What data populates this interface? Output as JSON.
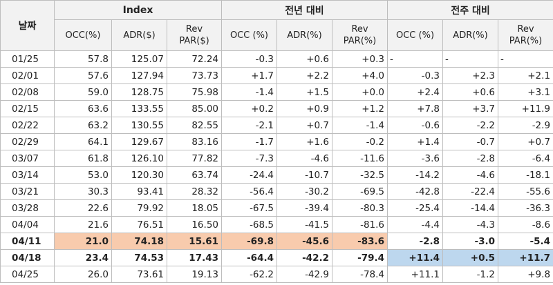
{
  "header": {
    "date_label": "날짜",
    "groups": [
      "Index",
      "전년 대비",
      "전주 대비"
    ],
    "columns": [
      "OCC(%)",
      "ADR($)",
      "Rev PAR($)",
      "OCC (%)",
      "ADR(%)",
      "Rev PAR(%)",
      "OCC (%)",
      "ADR(%)",
      "Rev PAR(%)"
    ]
  },
  "rows": [
    {
      "date": "01/25",
      "values": [
        "57.8",
        "125.07",
        "72.24",
        "-0.3",
        "+0.6",
        "+0.3",
        "-",
        "-",
        "-"
      ]
    },
    {
      "date": "02/01",
      "values": [
        "57.6",
        "127.94",
        "73.73",
        "+1.7",
        "+2.2",
        "+4.0",
        "-0.3",
        "+2.3",
        "+2.1"
      ]
    },
    {
      "date": "02/08",
      "values": [
        "59.0",
        "128.75",
        "75.98",
        "-1.4",
        "+1.5",
        "+0.0",
        "+2.4",
        "+0.6",
        "+3.1"
      ]
    },
    {
      "date": "02/15",
      "values": [
        "63.6",
        "133.55",
        "85.00",
        "+0.2",
        "+0.9",
        "+1.2",
        "+7.8",
        "+3.7",
        "+11.9"
      ]
    },
    {
      "date": "02/22",
      "values": [
        "63.2",
        "130.55",
        "82.55",
        "-2.1",
        "+0.7",
        "-1.4",
        "-0.6",
        "-2.2",
        "-2.9"
      ]
    },
    {
      "date": "02/29",
      "values": [
        "64.1",
        "129.67",
        "83.16",
        "-1.7",
        "+1.6",
        "-0.2",
        "+1.4",
        "-0.7",
        "+0.7"
      ]
    },
    {
      "date": "03/07",
      "values": [
        "61.8",
        "126.10",
        "77.82",
        "-7.3",
        "-4.6",
        "-11.6",
        "-3.6",
        "-2.8",
        "-6.4"
      ]
    },
    {
      "date": "03/14",
      "values": [
        "53.0",
        "120.30",
        "63.74",
        "-24.4",
        "-10.7",
        "-32.5",
        "-14.2",
        "-4.6",
        "-18.1"
      ]
    },
    {
      "date": "03/21",
      "values": [
        "30.3",
        "93.41",
        "28.32",
        "-56.4",
        "-30.2",
        "-69.5",
        "-42.8",
        "-22.4",
        "-55.6"
      ]
    },
    {
      "date": "03/28",
      "values": [
        "22.6",
        "79.92",
        "18.05",
        "-67.5",
        "-39.4",
        "-80.3",
        "-25.4",
        "-14.4",
        "-36.3"
      ]
    },
    {
      "date": "04/04",
      "values": [
        "21.6",
        "76.51",
        "16.50",
        "-68.5",
        "-41.5",
        "-81.6",
        "-4.4",
        "-4.3",
        "-8.6"
      ]
    },
    {
      "date": "04/11",
      "values": [
        "21.0",
        "74.18",
        "15.61",
        "-69.8",
        "-45.6",
        "-83.6",
        "-2.8",
        "-3.0",
        "-5.4"
      ]
    },
    {
      "date": "04/18",
      "values": [
        "23.4",
        "74.53",
        "17.43",
        "-64.4",
        "-42.2",
        "-79.4",
        "+11.4",
        "+0.5",
        "+11.7"
      ]
    },
    {
      "date": "04/25",
      "values": [
        "26.0",
        "73.61",
        "19.13",
        "-62.2",
        "-42.9",
        "-78.4",
        "+11.1",
        "-1.2",
        "+9.8"
      ]
    }
  ],
  "highlights": {
    "orange": "#f8cbad",
    "blue": "#bdd7ee"
  }
}
